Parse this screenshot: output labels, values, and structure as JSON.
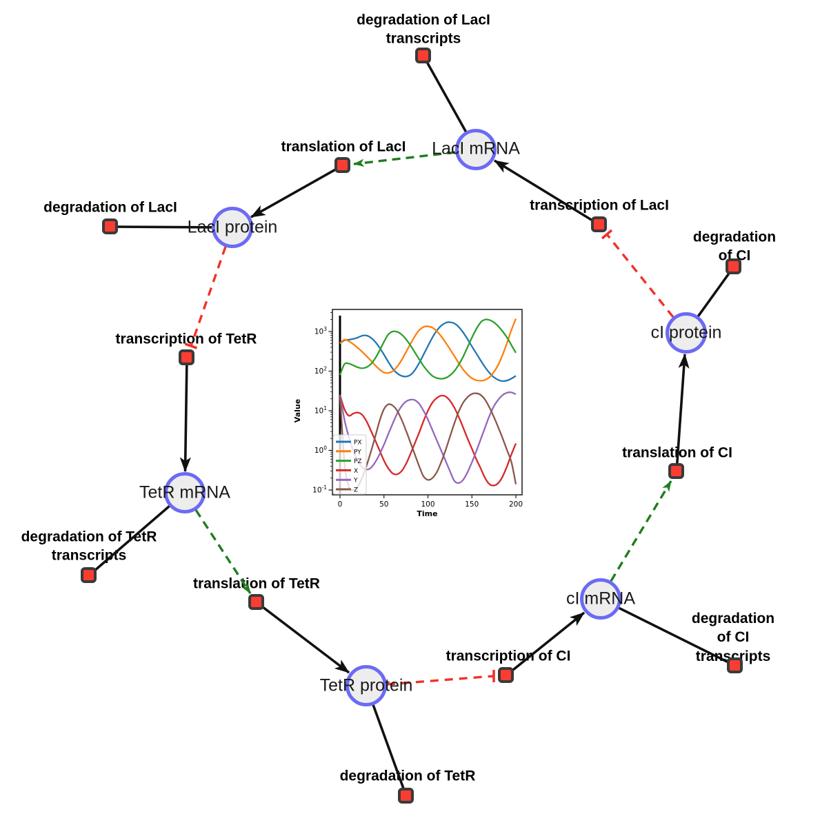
{
  "background": "#ffffff",
  "diagram": {
    "species": [
      {
        "id": "laci-mrna",
        "label": "LacI mRNA"
      },
      {
        "id": "laci-protein",
        "label": "LacI protein"
      },
      {
        "id": "tetr-mrna",
        "label": "TetR mRNA"
      },
      {
        "id": "tetr-protein",
        "label": "TetR protein"
      },
      {
        "id": "ci-mrna",
        "label": "cI mRNA"
      },
      {
        "id": "ci-protein",
        "label": "cI protein"
      }
    ],
    "reactions": [
      {
        "id": "deg-laci-transcripts",
        "label": "degradation of LacI\ntranscripts"
      },
      {
        "id": "translation-laci",
        "label": "translation of LacI"
      },
      {
        "id": "transcription-laci",
        "label": "transcription of LacI"
      },
      {
        "id": "deg-laci",
        "label": "degradation of LacI"
      },
      {
        "id": "transcription-tetr",
        "label": "transcription of TetR"
      },
      {
        "id": "deg-ci",
        "label": "degradation of CI"
      },
      {
        "id": "translation-ci",
        "label": "translation of CI"
      },
      {
        "id": "deg-tetr-transcripts",
        "label": "degradation of TetR\ntranscripts"
      },
      {
        "id": "translation-tetr",
        "label": "translation of TetR"
      },
      {
        "id": "deg-tetr",
        "label": "degradation of TetR"
      },
      {
        "id": "transcription-ci",
        "label": "transcription of CI"
      },
      {
        "id": "deg-ci-transcripts",
        "label": "degradation of CI\ntranscripts"
      }
    ],
    "colors": {
      "species_fill": "#ededee",
      "species_border": "#6b6bf5",
      "reaction_fill": "#f93d32",
      "reaction_border": "#3a3a3a",
      "product_edge": "#111111",
      "reactant_edge": "#111111",
      "modifier_edge": "#1e7d1e",
      "inhibition_edge": "#f03228"
    }
  },
  "chart_data": {
    "type": "line",
    "title": "",
    "xlabel": "Time",
    "ylabel": "Value",
    "yscale": "log",
    "xlim": [
      0,
      200
    ],
    "ylim": [
      0.05,
      2800
    ],
    "xticks": [
      0,
      50,
      100,
      150,
      200
    ],
    "ytick_labels": [
      "10^-1",
      "10^0",
      "10^1",
      "10^2",
      "10^3"
    ],
    "grid": false,
    "legend_position": "lower left",
    "annotations": [
      {
        "type": "vline",
        "x": 0,
        "color": "#000000"
      }
    ],
    "x": [
      0,
      5,
      10,
      15,
      20,
      25,
      30,
      35,
      40,
      45,
      50,
      55,
      60,
      65,
      70,
      75,
      80,
      85,
      90,
      95,
      100,
      105,
      110,
      115,
      120,
      125,
      130,
      135,
      140,
      145,
      150,
      155,
      160,
      165,
      170,
      175,
      180,
      185,
      190,
      195,
      200
    ],
    "series": [
      {
        "name": "PX",
        "color": "#1f77b4",
        "values": [
          500,
          600,
          620,
          650,
          700,
          780,
          790,
          700,
          550,
          390,
          260,
          170,
          115,
          88,
          76,
          73,
          80,
          105,
          160,
          260,
          430,
          700,
          1050,
          1400,
          1650,
          1720,
          1600,
          1300,
          950,
          640,
          420,
          280,
          185,
          125,
          90,
          70,
          60,
          56,
          58,
          65,
          76
        ]
      },
      {
        "name": "PY",
        "color": "#ff7f0e",
        "values": [
          500,
          620,
          570,
          480,
          390,
          310,
          240,
          185,
          140,
          110,
          92,
          90,
          100,
          130,
          190,
          300,
          480,
          750,
          1080,
          1300,
          1350,
          1250,
          1020,
          760,
          530,
          360,
          240,
          160,
          110,
          82,
          66,
          59,
          57,
          60,
          70,
          95,
          145,
          260,
          520,
          1100,
          2100
        ]
      },
      {
        "name": "PZ",
        "color": "#2ca02c",
        "values": [
          80,
          150,
          155,
          140,
          125,
          118,
          125,
          150,
          210,
          330,
          550,
          850,
          1000,
          980,
          840,
          640,
          450,
          300,
          200,
          135,
          98,
          76,
          67,
          64,
          67,
          78,
          100,
          145,
          230,
          400,
          700,
          1150,
          1700,
          2000,
          1950,
          1700,
          1350,
          1000,
          700,
          450,
          290
        ]
      },
      {
        "name": "X",
        "color": "#d62728",
        "values": [
          25,
          11,
          7.5,
          8.5,
          9,
          8,
          5.5,
          3.2,
          1.8,
          1.0,
          0.55,
          0.35,
          0.26,
          0.25,
          0.3,
          0.45,
          0.8,
          1.5,
          2.8,
          5.5,
          10,
          16,
          21,
          24,
          23,
          18,
          12,
          7,
          3.8,
          2.0,
          1.1,
          0.6,
          0.35,
          0.2,
          0.14,
          0.13,
          0.15,
          0.22,
          0.4,
          0.8,
          1.5
        ]
      },
      {
        "name": "Y",
        "color": "#9467bd",
        "values": [
          25,
          6,
          2.2,
          1.0,
          0.55,
          0.38,
          0.33,
          0.36,
          0.5,
          0.8,
          1.4,
          2.6,
          4.8,
          8.5,
          13,
          17,
          19,
          18.5,
          15,
          10,
          6,
          3.3,
          1.8,
          1.0,
          0.55,
          0.3,
          0.17,
          0.15,
          0.18,
          0.28,
          0.5,
          0.95,
          1.9,
          3.8,
          7.5,
          13,
          19,
          25,
          28.5,
          29,
          26
        ]
      },
      {
        "name": "Z",
        "color": "#8c564b",
        "values": [
          25,
          0.5,
          0.12,
          0.1,
          0.12,
          0.2,
          0.4,
          0.9,
          2.2,
          5.5,
          11,
          14.5,
          13.5,
          10,
          6,
          3.2,
          1.6,
          0.8,
          0.4,
          0.22,
          0.18,
          0.2,
          0.28,
          0.5,
          1.0,
          2.2,
          4.8,
          9.5,
          16,
          22,
          26.5,
          27.5,
          25,
          19,
          12,
          7,
          3.8,
          2.0,
          1.0,
          0.5,
          0.14
        ]
      }
    ]
  }
}
